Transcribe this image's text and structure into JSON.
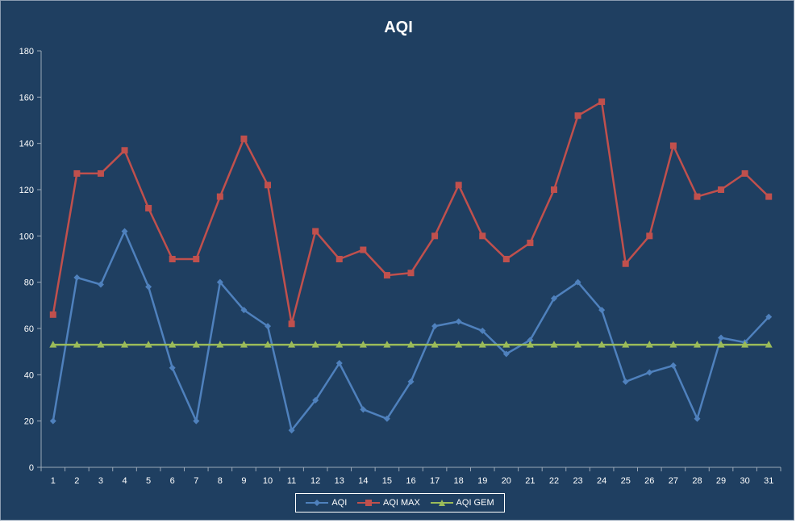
{
  "chart_data": {
    "type": "line",
    "title": "AQI",
    "xlabel": "",
    "ylabel": "",
    "ylim": [
      0,
      180
    ],
    "yticks": [
      0,
      20,
      40,
      60,
      80,
      100,
      120,
      140,
      160,
      180
    ],
    "grid": false,
    "legend_position": "bottom",
    "categories": [
      "1",
      "2",
      "3",
      "4",
      "5",
      "6",
      "7",
      "8",
      "9",
      "10",
      "11",
      "12",
      "13",
      "14",
      "15",
      "16",
      "17",
      "18",
      "19",
      "20",
      "21",
      "22",
      "23",
      "24",
      "25",
      "26",
      "27",
      "28",
      "29",
      "30",
      "31"
    ],
    "series": [
      {
        "name": "AQI",
        "color": "#4f81bd",
        "marker": "diamond",
        "values": [
          20,
          82,
          79,
          102,
          78,
          43,
          20,
          80,
          68,
          61,
          16,
          29,
          45,
          25,
          21,
          37,
          61,
          63,
          59,
          49,
          55,
          73,
          80,
          68,
          37,
          41,
          44,
          21,
          56,
          54,
          65
        ]
      },
      {
        "name": "AQI MAX",
        "color": "#c0504d",
        "marker": "square",
        "values": [
          66,
          127,
          127,
          137,
          112,
          90,
          90,
          117,
          142,
          122,
          62,
          102,
          90,
          94,
          83,
          84,
          100,
          122,
          100,
          90,
          97,
          120,
          152,
          158,
          88,
          100,
          139,
          117,
          120,
          127,
          117
        ]
      },
      {
        "name": "AQI GEM",
        "color": "#9bbb59",
        "marker": "triangle",
        "values": [
          53,
          53,
          53,
          53,
          53,
          53,
          53,
          53,
          53,
          53,
          53,
          53,
          53,
          53,
          53,
          53,
          53,
          53,
          53,
          53,
          53,
          53,
          53,
          53,
          53,
          53,
          53,
          53,
          53,
          53,
          53
        ]
      }
    ]
  }
}
